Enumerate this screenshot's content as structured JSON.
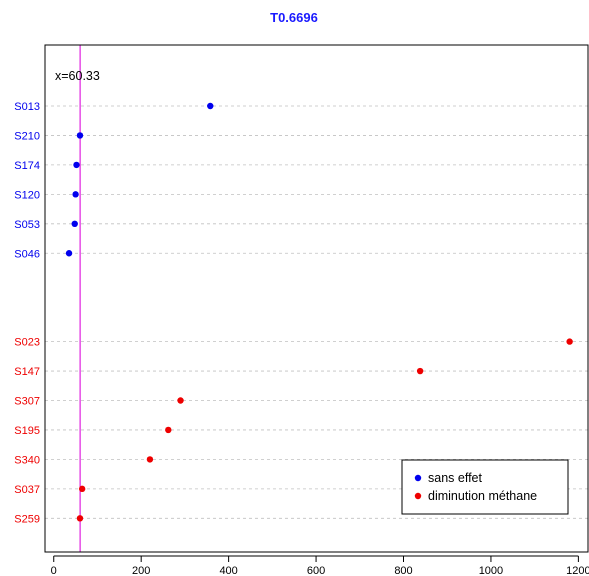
{
  "chart_data": {
    "type": "scatter",
    "title": "T0.6696",
    "title_color": "#1a1aff",
    "xlabel": "",
    "ylabel": "",
    "xlim": [
      -20,
      1222
    ],
    "xticks": [
      0,
      200,
      400,
      600,
      800,
      1000,
      1200
    ],
    "grid": "horizontal dashed",
    "legend_position": "bottom-right",
    "reference_line": {
      "x": 60.33,
      "label": "x=60.33",
      "color": "#e020e0"
    },
    "series": [
      {
        "name": "sans effet",
        "color": "#0000ee",
        "points": [
          {
            "label": "S013",
            "value": 358
          },
          {
            "label": "S210",
            "value": 60
          },
          {
            "label": "S174",
            "value": 52
          },
          {
            "label": "S120",
            "value": 50
          },
          {
            "label": "S053",
            "value": 48
          },
          {
            "label": "S046",
            "value": 35
          }
        ]
      },
      {
        "name": "diminution méthane",
        "color": "#ee0000",
        "points": [
          {
            "label": "S023",
            "value": 1180
          },
          {
            "label": "S147",
            "value": 838
          },
          {
            "label": "S307",
            "value": 290
          },
          {
            "label": "S195",
            "value": 262
          },
          {
            "label": "S340",
            "value": 220
          },
          {
            "label": "S037",
            "value": 65
          },
          {
            "label": "S259",
            "value": 60
          }
        ]
      }
    ]
  }
}
